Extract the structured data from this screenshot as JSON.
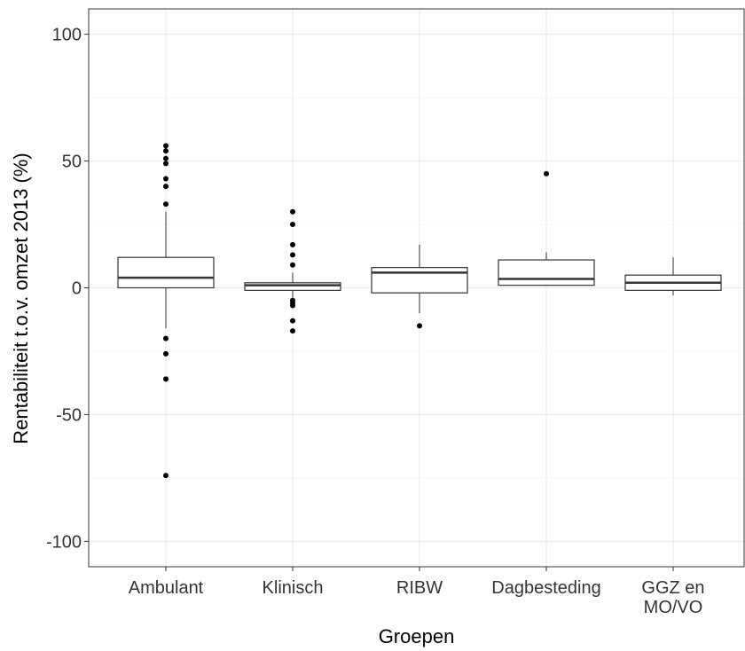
{
  "chart_data": {
    "type": "boxplot",
    "xlabel": "Groepen",
    "ylabel": "Rentabiliteit t.o.v. omzet 2013 (%)",
    "ylim": [
      -110,
      110
    ],
    "yticks": [
      -100,
      -50,
      0,
      50,
      100
    ],
    "grid": true,
    "categories": [
      [
        "Ambulant"
      ],
      [
        "Klinisch"
      ],
      [
        "RIBW"
      ],
      [
        "Dagbesteding"
      ],
      [
        "GGZ en",
        "MO/VO"
      ]
    ],
    "boxes": [
      {
        "whisker_low": -16,
        "q1": 0,
        "median": 4,
        "q3": 12,
        "whisker_high": 30,
        "outliers": [
          56,
          54,
          51,
          49,
          43,
          40,
          33,
          -20,
          -26,
          -36,
          -74
        ]
      },
      {
        "whisker_low": -4,
        "q1": -1,
        "median": 1,
        "q3": 2,
        "whisker_high": 6,
        "outliers": [
          30,
          25,
          17,
          13,
          9,
          -5,
          -6,
          -7,
          -13,
          -17
        ]
      },
      {
        "whisker_low": -10,
        "q1": -2,
        "median": 6,
        "q3": 8,
        "whisker_high": 17,
        "outliers": [
          -15
        ]
      },
      {
        "whisker_low": 1,
        "q1": 1,
        "median": 3.5,
        "q3": 11,
        "whisker_high": 14,
        "outliers": [
          45
        ]
      },
      {
        "whisker_low": -3,
        "q1": -1,
        "median": 2,
        "q3": 5,
        "whisker_high": 12,
        "outliers": []
      }
    ]
  }
}
